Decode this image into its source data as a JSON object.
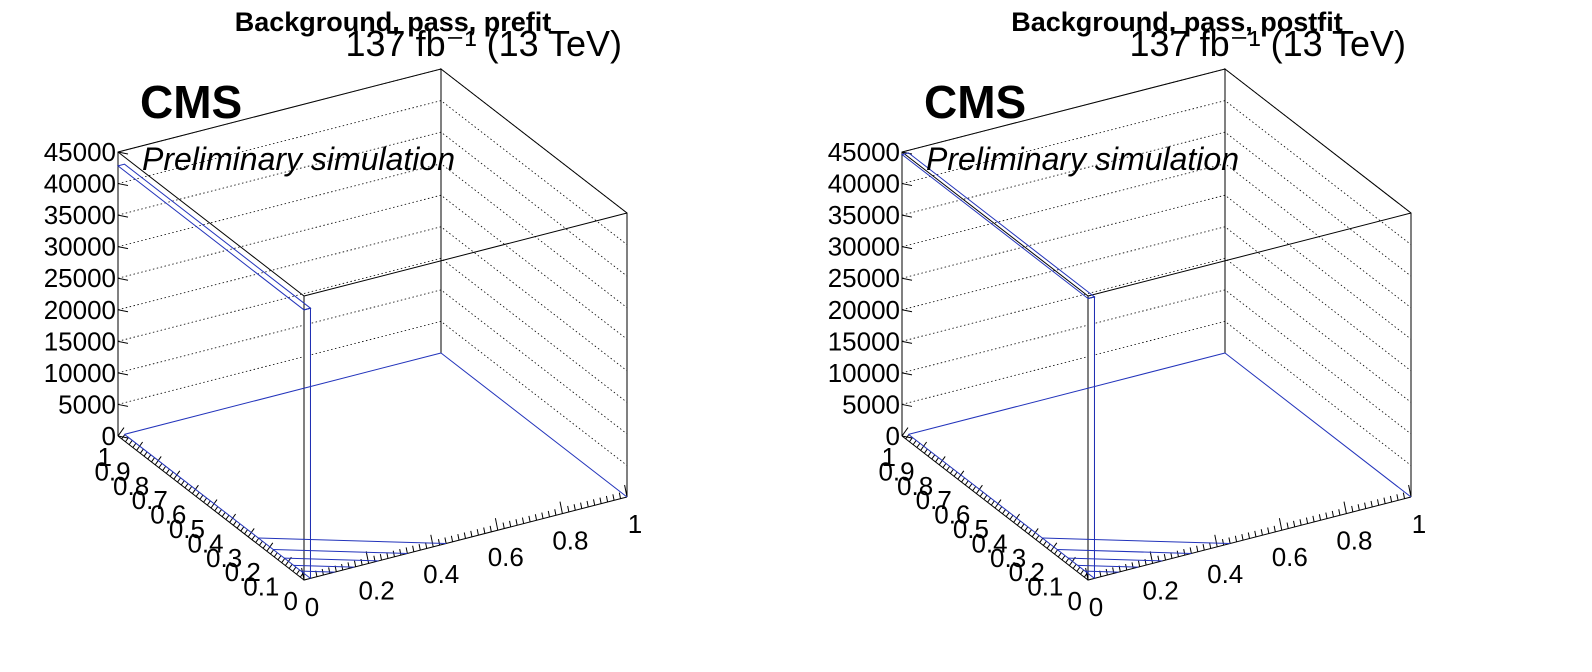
{
  "chart_data": [
    {
      "type": "lego",
      "title": "Background, pass, prefit",
      "lumi_label": "137 fb⁻¹ (13 TeV)",
      "cms_label": "CMS",
      "extra_label": "Preliminary simulation",
      "z_ticks": [
        "0",
        "5000",
        "10000",
        "15000",
        "20000",
        "25000",
        "30000",
        "35000",
        "40000",
        "45000"
      ],
      "x_ticks": [
        "0",
        "0.2",
        "0.4",
        "0.6",
        "0.8",
        "1"
      ],
      "y_ticks": [
        "0",
        "0.1",
        "0.2",
        "0.3",
        "0.4",
        "0.5",
        "0.6",
        "0.7",
        "0.8",
        "0.9",
        "1"
      ],
      "zlim": [
        0,
        45000
      ],
      "bins": [
        {
          "x_low": 0,
          "x_high": 0.02,
          "y_low": 0,
          "y_high": 1,
          "value": 42800
        }
      ]
    },
    {
      "type": "lego",
      "title": "Background, pass, postfit",
      "lumi_label": "137 fb⁻¹ (13 TeV)",
      "cms_label": "CMS",
      "extra_label": "Preliminary simulation",
      "z_ticks": [
        "0",
        "5000",
        "10000",
        "15000",
        "20000",
        "25000",
        "30000",
        "35000",
        "40000",
        "45000"
      ],
      "x_ticks": [
        "0",
        "0.2",
        "0.4",
        "0.6",
        "0.8",
        "1"
      ],
      "y_ticks": [
        "0",
        "0.1",
        "0.2",
        "0.3",
        "0.4",
        "0.5",
        "0.6",
        "0.7",
        "0.8",
        "0.9",
        "1"
      ],
      "zlim": [
        0,
        45000
      ],
      "bins": [
        {
          "x_low": 0,
          "x_high": 0.02,
          "y_low": 0,
          "y_high": 1,
          "value": 44600
        }
      ]
    }
  ]
}
